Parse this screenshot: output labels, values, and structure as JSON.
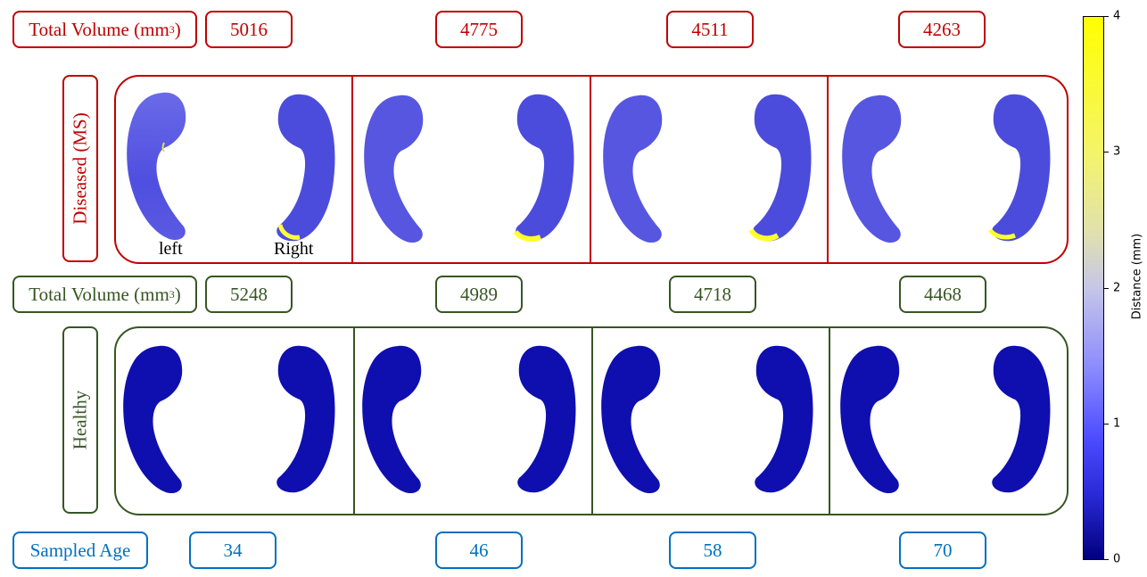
{
  "rows": {
    "diseased": {
      "volume_label": "Total Volume (mm",
      "volume_unit_exp": "3",
      "volume_label_end": ")",
      "volumes": [
        "5016",
        "4775",
        "4511",
        "4263"
      ],
      "row_label": "Diseased (MS)",
      "color": "#c00000"
    },
    "healthy": {
      "volume_label": "Total Volume (mm",
      "volume_unit_exp": "3",
      "volume_label_end": ")",
      "volumes": [
        "5248",
        "4989",
        "4718",
        "4468"
      ],
      "row_label": "Healthy",
      "color": "#375623"
    }
  },
  "hemisphere_labels": {
    "left": "left",
    "right": "Right"
  },
  "age": {
    "label": "Sampled Age",
    "values": [
      "34",
      "46",
      "58",
      "70"
    ],
    "color": "#0070c0"
  },
  "colorbar": {
    "title": "Distance (mm)",
    "ticks": [
      "4",
      "3",
      "2",
      "1",
      "0"
    ],
    "range": [
      0,
      4
    ],
    "colors": {
      "low": "#00007f",
      "mid": "#c6c6e8",
      "high": "#ffff00"
    }
  }
}
